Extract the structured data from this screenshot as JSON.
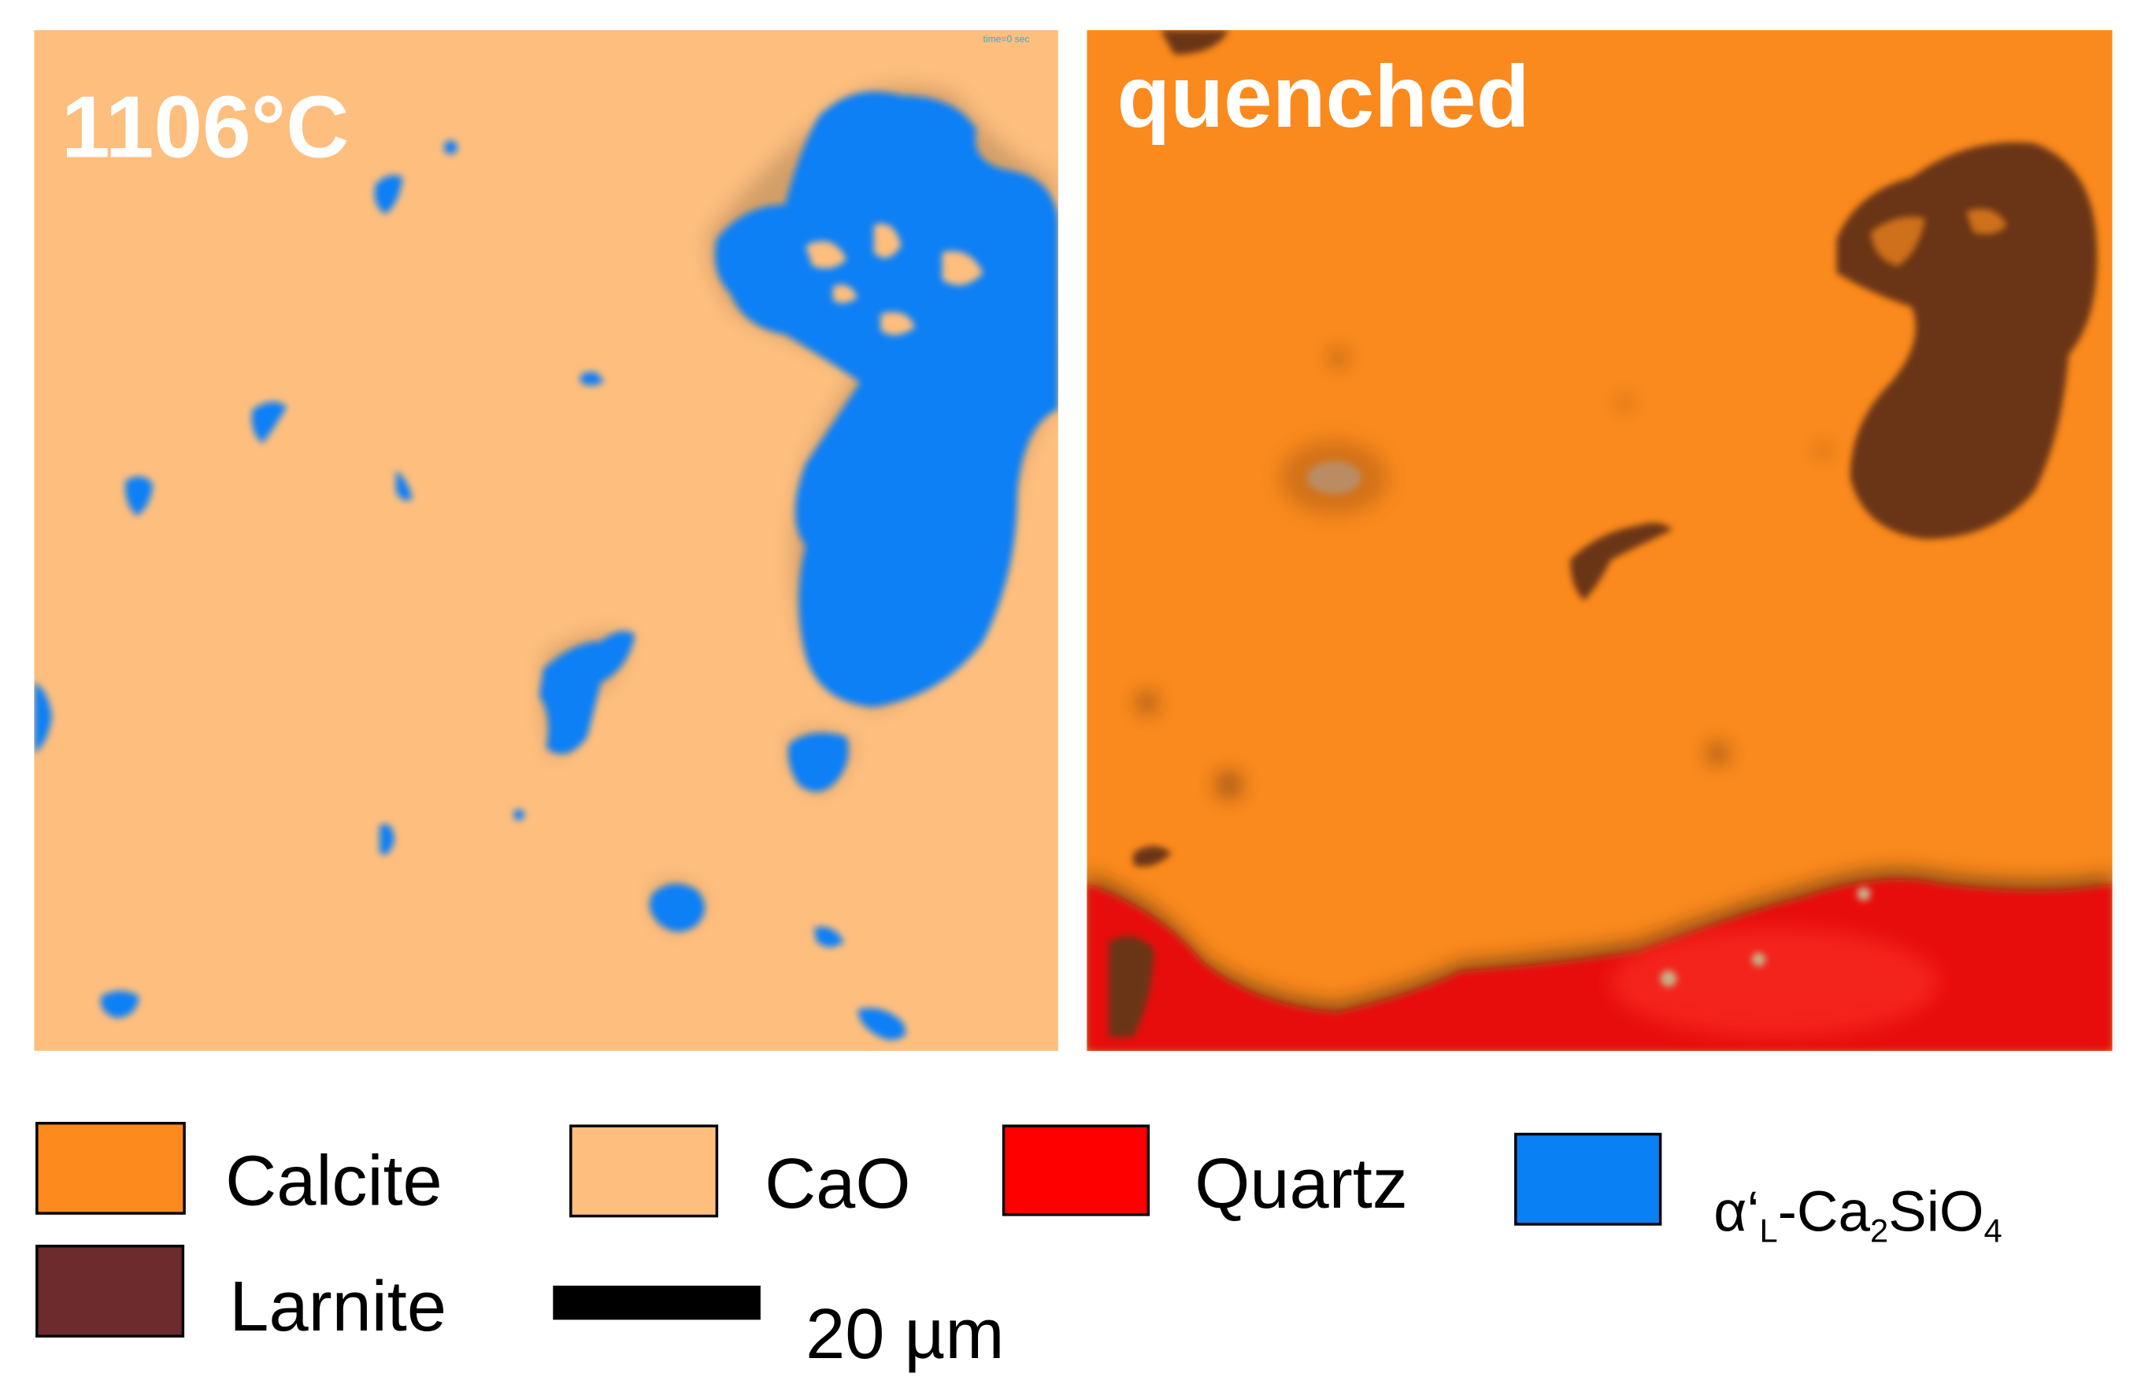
{
  "panels": [
    {
      "label": "1106°C",
      "overlay": "time=0 sec"
    },
    {
      "label": "quenched"
    }
  ],
  "legend": [
    {
      "name": "Calcite",
      "color": "#fd8a1c"
    },
    {
      "name": "CaO",
      "color": "#fdbe7e"
    },
    {
      "name": "Quartz",
      "color": "#ff0000"
    },
    {
      "name_parts": [
        "α‘",
        "L",
        "-Ca",
        "2",
        "SiO",
        "4"
      ],
      "color": "#0a80f5"
    },
    {
      "name": "Larnite",
      "color": "#6d2b2e"
    }
  ],
  "scale_bar": {
    "label": "20 µm"
  }
}
